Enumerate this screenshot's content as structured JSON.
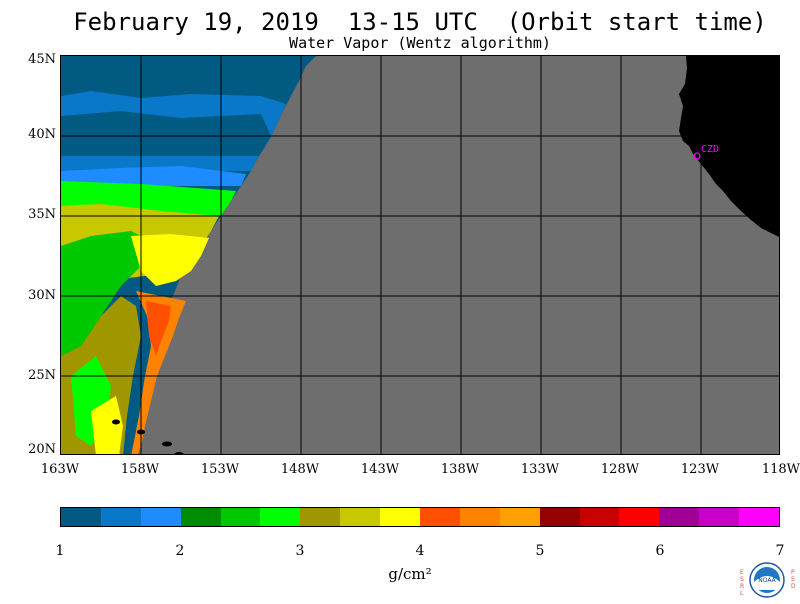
{
  "title": "February 19, 2019  13-15 UTC  (Orbit start time)",
  "subtitle": "Water Vapor (Wentz algorithm)",
  "lat_labels": [
    "45N",
    "40N",
    "35N",
    "30N",
    "25N",
    "20N"
  ],
  "lon_labels": [
    "163W",
    "158W",
    "153W",
    "148W",
    "143W",
    "138W",
    "133W",
    "128W",
    "123W",
    "118W"
  ],
  "station_label": "CZD",
  "colorbar": {
    "tick_labels": [
      "1",
      "2",
      "3",
      "4",
      "5",
      "6",
      "7"
    ],
    "colors": [
      "#005a82",
      "#0a78c8",
      "#1e8cff",
      "#008c00",
      "#00c800",
      "#00ff00",
      "#a09600",
      "#c8c800",
      "#ffff00",
      "#ff5000",
      "#ff8200",
      "#ffa000",
      "#960000",
      "#c80000",
      "#ff0000",
      "#a00096",
      "#c800c8",
      "#ff00ff"
    ],
    "units": "g/cm²"
  },
  "colors": {
    "no_data": "#6e6e6e",
    "land": "#000000",
    "station": "#ff00ff"
  },
  "logo": {
    "left_letters": "ESRL",
    "right_letters": "PSD",
    "center": "NOAA"
  }
}
